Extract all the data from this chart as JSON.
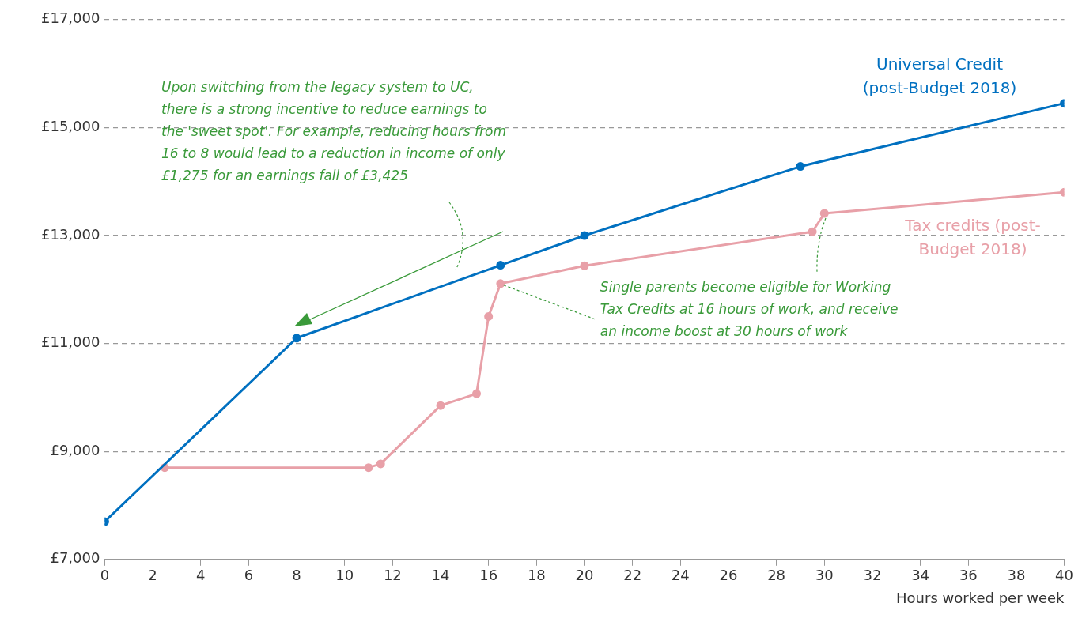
{
  "chart_data": {
    "type": "line",
    "xlabel": "Hours worked per week",
    "xlim": [
      0,
      40
    ],
    "xticks": [
      0,
      2,
      4,
      6,
      8,
      10,
      12,
      14,
      16,
      18,
      20,
      22,
      24,
      26,
      28,
      30,
      32,
      34,
      36,
      38,
      40
    ],
    "ylim": [
      7000,
      17000
    ],
    "yticks": [
      {
        "value": 7000,
        "label": "£7,000"
      },
      {
        "value": 9000,
        "label": "£9,000"
      },
      {
        "value": 11000,
        "label": "£11,000"
      },
      {
        "value": 13000,
        "label": "£13,000"
      },
      {
        "value": 15000,
        "label": "£15,000"
      },
      {
        "value": 17000,
        "label": "£17,000"
      }
    ],
    "grid": "y",
    "legend": false,
    "marker": "circle",
    "line_style": "solid",
    "series": [
      {
        "name": "Universal Credit (post-Budget 2018)",
        "color": "#0070c0",
        "x": [
          0,
          8,
          16.5,
          20,
          29,
          40
        ],
        "values": [
          7700,
          11100,
          12450,
          13000,
          14280,
          15450
        ]
      },
      {
        "name": "Tax credits (post-Budget 2018)",
        "color": "#e8a0a8",
        "x": [
          2.5,
          11,
          11.5,
          14,
          15.5,
          16,
          16.5,
          20,
          29.5,
          30,
          40
        ],
        "values": [
          8700,
          8700,
          8770,
          9850,
          10070,
          11500,
          12110,
          12440,
          13070,
          13410,
          13800
        ]
      }
    ],
    "annotations": [
      "Upon switching from the legacy system to UC, there is a strong incentive to reduce earnings to the 'sweet spot'. For example, reducing hours from 16 to 8 would lead to a reduction in income of only £1,275 for an earnings fall of £3,425",
      {
        "x": 16.5,
        "y": 12110,
        "text": "Single parents become eligible for Working Tax Credits at 16 hours of work, and receive an income boost at 30 hours of work"
      }
    ]
  }
}
